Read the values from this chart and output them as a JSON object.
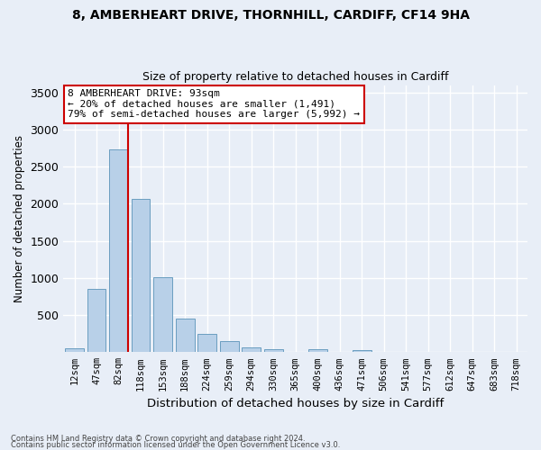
{
  "title_line1": "8, AMBERHEART DRIVE, THORNHILL, CARDIFF, CF14 9HA",
  "title_line2": "Size of property relative to detached houses in Cardiff",
  "xlabel": "Distribution of detached houses by size in Cardiff",
  "ylabel": "Number of detached properties",
  "categories": [
    "12sqm",
    "47sqm",
    "82sqm",
    "118sqm",
    "153sqm",
    "188sqm",
    "224sqm",
    "259sqm",
    "294sqm",
    "330sqm",
    "365sqm",
    "400sqm",
    "436sqm",
    "471sqm",
    "506sqm",
    "541sqm",
    "577sqm",
    "612sqm",
    "647sqm",
    "683sqm",
    "718sqm"
  ],
  "values": [
    55,
    855,
    2730,
    2065,
    1005,
    455,
    250,
    155,
    65,
    45,
    0,
    35,
    0,
    25,
    0,
    0,
    0,
    0,
    0,
    0,
    0
  ],
  "bar_color": "#b8d0e8",
  "bar_edge_color": "#6a9ec0",
  "vline_color": "#cc0000",
  "vline_pos": 2.43,
  "annotation_text": "8 AMBERHEART DRIVE: 93sqm\n← 20% of detached houses are smaller (1,491)\n79% of semi-detached houses are larger (5,992) →",
  "annotation_box_facecolor": "#ffffff",
  "annotation_box_edgecolor": "#cc0000",
  "ylim": [
    0,
    3600
  ],
  "yticks": [
    0,
    500,
    1000,
    1500,
    2000,
    2500,
    3000,
    3500
  ],
  "background_color": "#e8eef7",
  "grid_color": "#ffffff",
  "footer_line1": "Contains HM Land Registry data © Crown copyright and database right 2024.",
  "footer_line2": "Contains public sector information licensed under the Open Government Licence v3.0."
}
